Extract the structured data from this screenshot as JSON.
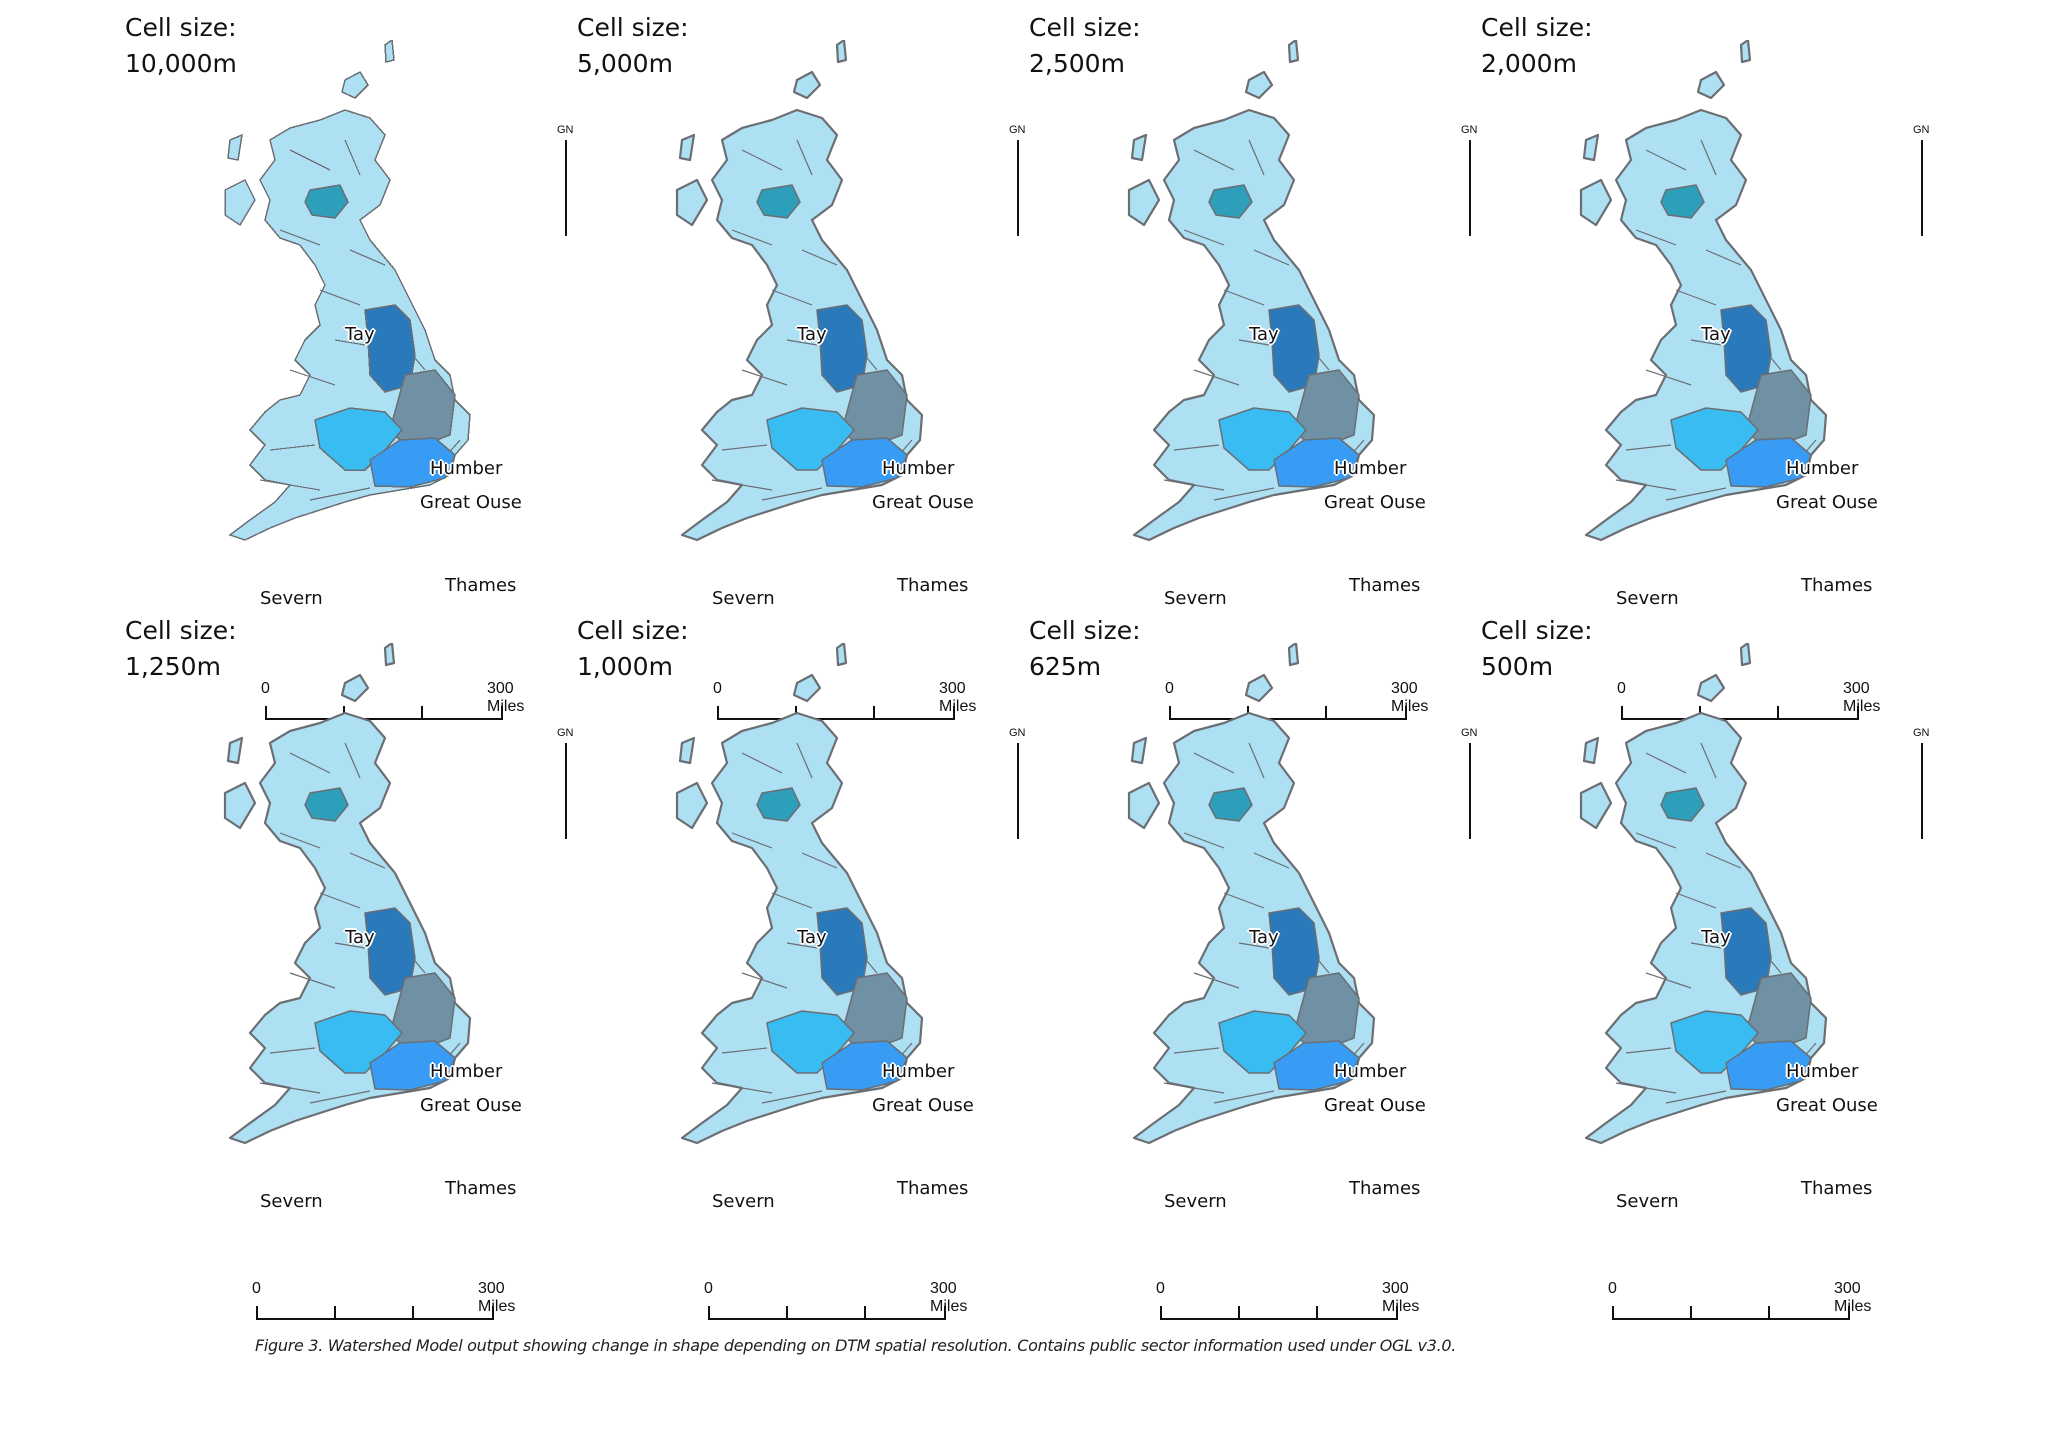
{
  "figure": {
    "caption": "Figure 3. Watershed Model output showing change in shape depending on DTM spatial resolution. Contains public sector information used under OGL v3.0.",
    "north_arrow_label": "GN",
    "scale_bar": {
      "start_label": "0",
      "end_label": "300 Miles",
      "segments": 3
    },
    "colors": {
      "land": "#aee0f4",
      "outline": "#6b6e72",
      "tay": "#2e9fba",
      "humber": "#2a79ba",
      "great_ouse": "#7090a4",
      "severn": "#38bcf2",
      "thames": "#389cf4"
    },
    "basin_labels": {
      "tay": "Tay",
      "humber": "Humber",
      "great_ouse": "Great Ouse",
      "thames": "Thames",
      "severn": "Severn"
    }
  },
  "panels": [
    {
      "title_line1": "Cell size:",
      "title_line2": "10,000m",
      "cell_size_m": 10000,
      "row": 0,
      "col": 0,
      "blocky": true
    },
    {
      "title_line1": "Cell size:",
      "title_line2": "5,000m",
      "cell_size_m": 5000,
      "row": 0,
      "col": 1,
      "blocky": false
    },
    {
      "title_line1": "Cell size:",
      "title_line2": "2,500m",
      "cell_size_m": 2500,
      "row": 0,
      "col": 2,
      "blocky": false
    },
    {
      "title_line1": "Cell size:",
      "title_line2": "2,000m",
      "cell_size_m": 2000,
      "row": 0,
      "col": 3,
      "blocky": false
    },
    {
      "title_line1": "Cell size:",
      "title_line2": "1,250m",
      "cell_size_m": 1250,
      "row": 1,
      "col": 0,
      "blocky": false
    },
    {
      "title_line1": "Cell size:",
      "title_line2": "1,000m",
      "cell_size_m": 1000,
      "row": 1,
      "col": 1,
      "blocky": false
    },
    {
      "title_line1": "Cell size:",
      "title_line2": "625m",
      "cell_size_m": 625,
      "row": 1,
      "col": 2,
      "blocky": false
    },
    {
      "title_line1": "Cell size:",
      "title_line2": "500m",
      "cell_size_m": 500,
      "row": 1,
      "col": 3,
      "blocky": false
    }
  ]
}
